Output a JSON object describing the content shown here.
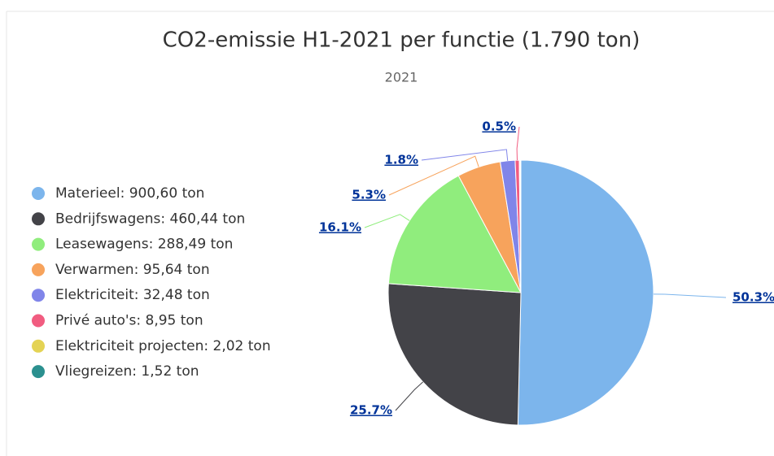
{
  "chart_data": {
    "type": "pie",
    "title": "CO2-emissie H1-2021 per functie (1.790 ton)",
    "subtitle": "2021",
    "categories": [
      "Materieel: 900,60 ton",
      "Bedrijfswagens: 460,44 ton",
      "Leasewagens: 288,49 ton",
      "Verwarmen: 95,64 ton",
      "Elektriciteit: 32,48 ton",
      "Privé auto's: 8,95 ton",
      "Elektriciteit projecten: 2,02 ton",
      "Vliegreizen: 1,52 ton"
    ],
    "values": [
      50.3,
      25.7,
      16.1,
      5.3,
      1.8,
      0.5,
      0.11,
      0.08
    ],
    "value_labels": [
      "50.3%",
      "25.7%",
      "16.1%",
      "5.3%",
      "1.8%",
      "0.5%",
      null,
      null
    ],
    "colors": [
      "#7cb5ec",
      "#434348",
      "#90ed7d",
      "#f7a35c",
      "#8085e9",
      "#f15c80",
      "#e4d354",
      "#2b908f"
    ],
    "legend": "left"
  }
}
